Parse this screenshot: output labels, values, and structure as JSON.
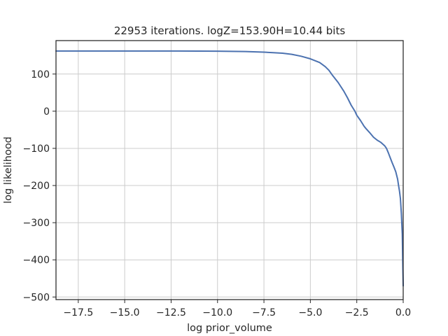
{
  "chart_data": {
    "type": "line",
    "title": "22953 iterations. logZ=153.90H=10.44 bits",
    "xlabel": "log prior_volume",
    "ylabel": "log likelihood",
    "xlim": [
      -18.7,
      0.0
    ],
    "ylim": [
      -507,
      190
    ],
    "xticks": [
      -17.5,
      -15.0,
      -12.5,
      -10.0,
      -7.5,
      -5.0,
      -2.5,
      0.0
    ],
    "xtick_labels": [
      "−17.5",
      "−15.0",
      "−12.5",
      "−10.0",
      "−7.5",
      "−5.0",
      "−2.5",
      "0.0"
    ],
    "yticks": [
      100,
      0,
      -100,
      -200,
      -300,
      -400,
      -500
    ],
    "ytick_labels": [
      "100",
      "0",
      "−100",
      "−200",
      "−300",
      "−400",
      "−500"
    ],
    "grid": true,
    "line_color": "#4c72b0",
    "series": [
      {
        "x": [
          -18.7,
          -17.5,
          -15.0,
          -12.5,
          -10.0,
          -8.5,
          -7.5,
          -7.0,
          -6.5,
          -6.0,
          -5.5,
          -5.0,
          -4.5,
          -4.2,
          -4.0,
          -3.8,
          -3.5,
          -3.2,
          -3.0,
          -2.8,
          -2.6,
          -2.5,
          -2.3,
          -2.1,
          -2.0,
          -1.8,
          -1.6,
          -1.4,
          -1.2,
          -1.0,
          -0.9,
          -0.8,
          -0.7,
          -0.6,
          -0.5,
          -0.4,
          -0.3,
          -0.25,
          -0.2,
          -0.15,
          -0.1,
          -0.05,
          -0.02,
          0.0
        ],
        "y": [
          162,
          162,
          162,
          162,
          161.5,
          160.5,
          159,
          157.5,
          156,
          153,
          148,
          141,
          131,
          120,
          110,
          96,
          77,
          54,
          36,
          16,
          0,
          -11,
          -25,
          -41,
          -47,
          -58,
          -70,
          -78,
          -84,
          -93,
          -100,
          -112,
          -125,
          -138,
          -150,
          -163,
          -183,
          -200,
          -215,
          -235,
          -275,
          -330,
          -420,
          -470
        ]
      }
    ]
  }
}
